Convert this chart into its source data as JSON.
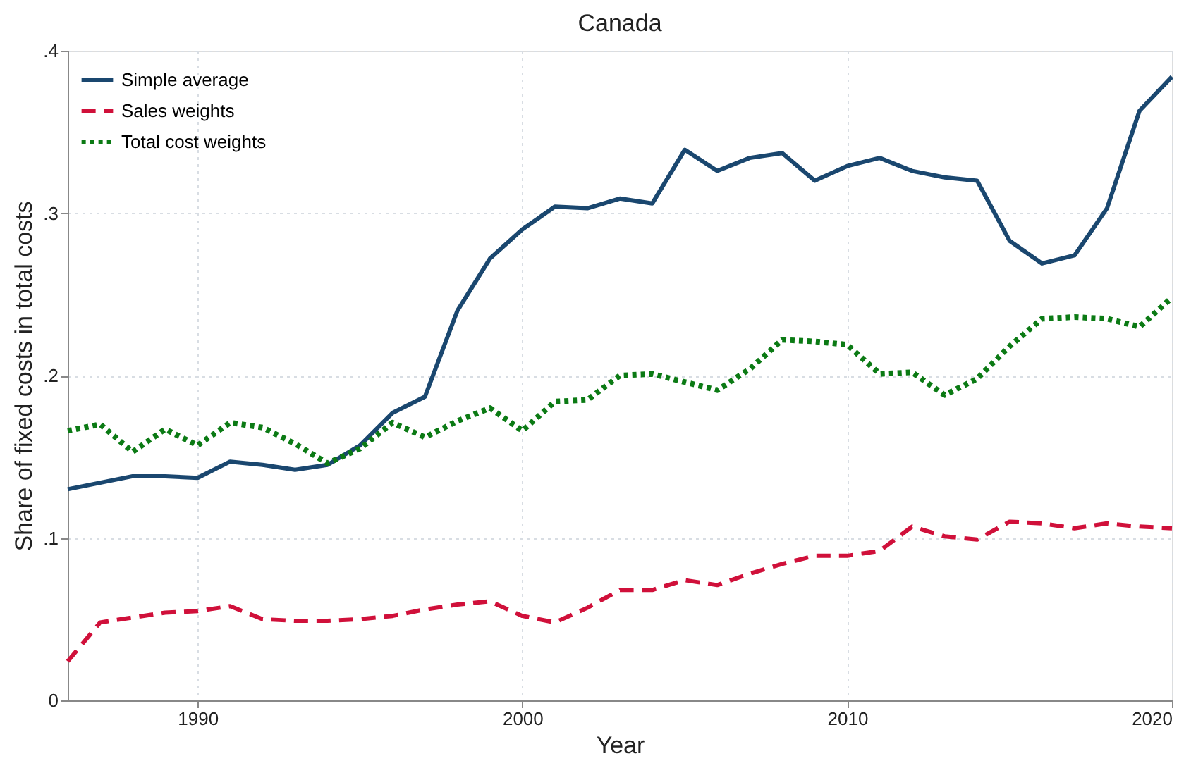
{
  "chart_data": {
    "type": "line",
    "title": "Canada",
    "xlabel": "Year",
    "ylabel": "Share of fixed costs in total costs",
    "x": [
      1986,
      1987,
      1988,
      1989,
      1990,
      1991,
      1992,
      1993,
      1994,
      1995,
      1996,
      1997,
      1998,
      1999,
      2000,
      2001,
      2002,
      2003,
      2004,
      2005,
      2006,
      2007,
      2008,
      2009,
      2010,
      2011,
      2012,
      2013,
      2014,
      2015,
      2016,
      2017,
      2018,
      2019,
      2020
    ],
    "series": [
      {
        "name": "Simple average",
        "color": "#1a476f",
        "line_style": "solid",
        "values": [
          0.13,
          0.134,
          0.138,
          0.138,
          0.137,
          0.147,
          0.145,
          0.142,
          0.145,
          0.157,
          0.177,
          0.187,
          0.24,
          0.272,
          0.29,
          0.304,
          0.303,
          0.309,
          0.306,
          0.339,
          0.326,
          0.334,
          0.337,
          0.32,
          0.329,
          0.334,
          0.326,
          0.322,
          0.32,
          0.283,
          0.269,
          0.274,
          0.303,
          0.363,
          0.384
        ]
      },
      {
        "name": "Sales weights",
        "color": "#d0103a",
        "line_style": "dashed",
        "values": [
          0.024,
          0.048,
          0.051,
          0.054,
          0.055,
          0.058,
          0.05,
          0.049,
          0.049,
          0.05,
          0.052,
          0.056,
          0.059,
          0.061,
          0.052,
          0.048,
          0.057,
          0.068,
          0.068,
          0.074,
          0.071,
          0.078,
          0.084,
          0.089,
          0.089,
          0.092,
          0.107,
          0.101,
          0.099,
          0.11,
          0.109,
          0.106,
          0.109,
          0.107,
          0.106
        ]
      },
      {
        "name": "Total cost weights",
        "color": "#0b7a14",
        "line_style": "dotted",
        "values": [
          0.166,
          0.17,
          0.153,
          0.167,
          0.157,
          0.171,
          0.168,
          0.158,
          0.146,
          0.155,
          0.171,
          0.162,
          0.172,
          0.18,
          0.166,
          0.184,
          0.185,
          0.2,
          0.201,
          0.196,
          0.191,
          0.204,
          0.222,
          0.221,
          0.219,
          0.201,
          0.202,
          0.188,
          0.198,
          0.218,
          0.235,
          0.236,
          0.235,
          0.23,
          0.248
        ]
      }
    ],
    "xlim": [
      1986,
      2020
    ],
    "xticks": [
      1990,
      2000,
      2010,
      2020
    ],
    "ylim": [
      0,
      0.4
    ],
    "yticks": [
      0,
      {
        "value": 0.1,
        "label": ".1"
      },
      {
        "value": 0.2,
        "label": ".2"
      },
      {
        "value": 0.3,
        "label": ".3"
      },
      {
        "value": 0.4,
        "label": ".4"
      }
    ],
    "grid": true,
    "legend": "top left",
    "marker": "none"
  }
}
